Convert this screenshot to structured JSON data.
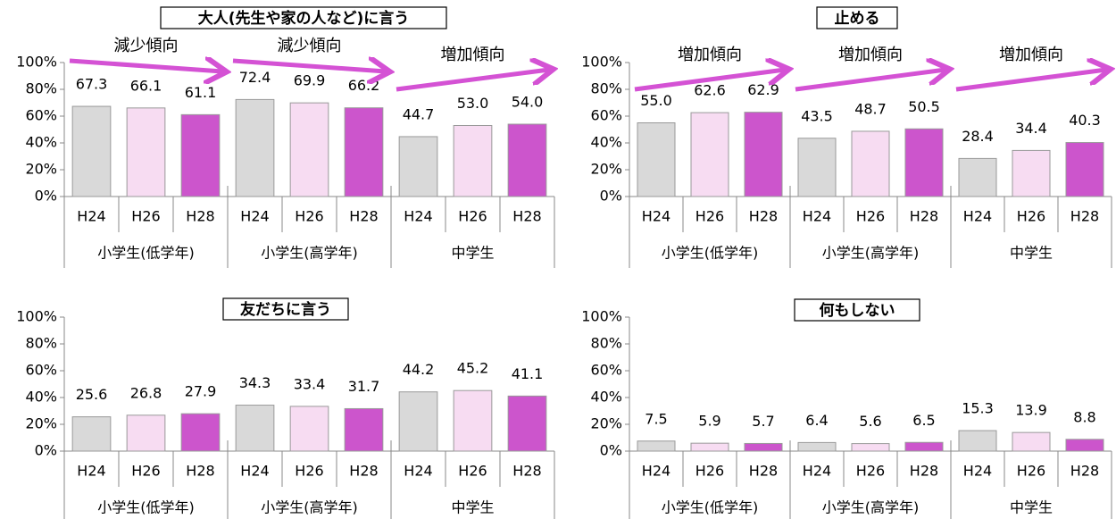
{
  "chart_data": [
    {
      "type": "bar",
      "title": "大人(先生や家の人など)に言う",
      "categories": [
        "H24",
        "H26",
        "H28",
        "H24",
        "H26",
        "H28",
        "H24",
        "H26",
        "H28"
      ],
      "groups": [
        "小学生(低学年)",
        "小学生(高学年)",
        "中学生"
      ],
      "values": [
        67.3,
        66.1,
        61.1,
        72.4,
        69.9,
        66.2,
        44.7,
        53.0,
        54.0
      ],
      "value_labels": [
        "67.3",
        "66.1",
        "61.1",
        "72.4",
        "69.9",
        "66.2",
        "44.7",
        "53.0",
        "54.0"
      ],
      "colors": [
        "#d9d9d9",
        "#f7dcf2",
        "#cc55cc"
      ],
      "annotations": [
        "減少傾向",
        "減少傾向",
        "増加傾向"
      ],
      "ylim": [
        0,
        100
      ],
      "yticks": [
        {
          "value": 0,
          "label": "0%"
        },
        {
          "value": 20,
          "label": "20%"
        },
        {
          "value": 40,
          "label": "40%"
        },
        {
          "value": 60,
          "label": "60%"
        },
        {
          "value": 80,
          "label": "80%"
        },
        {
          "value": 100,
          "label": "100%"
        }
      ]
    },
    {
      "type": "bar",
      "title": "止める",
      "categories": [
        "H24",
        "H26",
        "H28",
        "H24",
        "H26",
        "H28",
        "H24",
        "H26",
        "H28"
      ],
      "groups": [
        "小学生(低学年)",
        "小学生(高学年)",
        "中学生"
      ],
      "values": [
        55.0,
        62.6,
        62.9,
        43.5,
        48.7,
        50.5,
        28.4,
        34.4,
        40.3
      ],
      "value_labels": [
        "55.0",
        "62.6",
        "62.9",
        "43.5",
        "48.7",
        "50.5",
        "28.4",
        "34.4",
        "40.3"
      ],
      "colors": [
        "#d9d9d9",
        "#f7dcf2",
        "#cc55cc"
      ],
      "annotations": [
        "増加傾向",
        "増加傾向",
        "増加傾向"
      ],
      "ylim": [
        0,
        100
      ],
      "yticks": [
        {
          "value": 0,
          "label": "0%"
        },
        {
          "value": 20,
          "label": "20%"
        },
        {
          "value": 40,
          "label": "40%"
        },
        {
          "value": 60,
          "label": "60%"
        },
        {
          "value": 80,
          "label": "80%"
        },
        {
          "value": 100,
          "label": "100%"
        }
      ]
    },
    {
      "type": "bar",
      "title": "友だちに言う",
      "categories": [
        "H24",
        "H26",
        "H28",
        "H24",
        "H26",
        "H28",
        "H24",
        "H26",
        "H28"
      ],
      "groups": [
        "小学生(低学年)",
        "小学生(高学年)",
        "中学生"
      ],
      "values": [
        25.6,
        26.8,
        27.9,
        34.3,
        33.4,
        31.7,
        44.2,
        45.2,
        41.1
      ],
      "value_labels": [
        "25.6",
        "26.8",
        "27.9",
        "34.3",
        "33.4",
        "31.7",
        "44.2",
        "45.2",
        "41.1"
      ],
      "colors": [
        "#d9d9d9",
        "#f7dcf2",
        "#cc55cc"
      ],
      "ylim": [
        0,
        100
      ],
      "yticks": [
        {
          "value": 0,
          "label": "0%"
        },
        {
          "value": 20,
          "label": "20%"
        },
        {
          "value": 40,
          "label": "40%"
        },
        {
          "value": 60,
          "label": "60%"
        },
        {
          "value": 80,
          "label": "80%"
        },
        {
          "value": 100,
          "label": "100%"
        }
      ]
    },
    {
      "type": "bar",
      "title": "何もしない",
      "categories": [
        "H24",
        "H26",
        "H28",
        "H24",
        "H26",
        "H28",
        "H24",
        "H26",
        "H28"
      ],
      "groups": [
        "小学生(低学年)",
        "小学生(高学年)",
        "中学生"
      ],
      "values": [
        7.5,
        5.9,
        5.7,
        6.4,
        5.6,
        6.5,
        15.3,
        13.9,
        8.8
      ],
      "value_labels": [
        "7.5",
        "5.9",
        "5.7",
        "6.4",
        "5.6",
        "6.5",
        "15.3",
        "13.9",
        "8.8"
      ],
      "colors": [
        "#d9d9d9",
        "#f7dcf2",
        "#cc55cc"
      ],
      "ylim": [
        0,
        100
      ],
      "yticks": [
        {
          "value": 0,
          "label": "0%"
        },
        {
          "value": 20,
          "label": "20%"
        },
        {
          "value": 40,
          "label": "40%"
        },
        {
          "value": 60,
          "label": "60%"
        },
        {
          "value": 80,
          "label": "80%"
        },
        {
          "value": 100,
          "label": "100%"
        }
      ]
    }
  ]
}
